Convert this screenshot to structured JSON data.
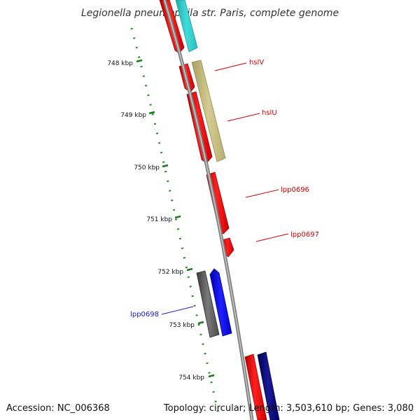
{
  "title": "Legionella pneumophila str. Paris, complete genome",
  "footer": {
    "accession": "Accession: NC_006368",
    "summary": "Topology: circular; Length: 3,503,610 bp; Genes: 3,080"
  },
  "ruler": {
    "ticks": [
      {
        "label": "748 kbp",
        "value": 748
      },
      {
        "label": "749 kbp",
        "value": 749
      },
      {
        "label": "750 kbp",
        "value": 750
      },
      {
        "label": "751 kbp",
        "value": 751
      },
      {
        "label": "752 kbp",
        "value": 752
      },
      {
        "label": "753 kbp",
        "value": 753
      },
      {
        "label": "754 kbp",
        "value": 754
      }
    ]
  },
  "gene_labels": [
    {
      "label": "hslV",
      "color": "#d40000"
    },
    {
      "label": "hslU",
      "color": "#d40000"
    },
    {
      "label": "lpp0696",
      "color": "#d40000"
    },
    {
      "label": "lpp0697",
      "color": "#d40000"
    },
    {
      "label": "lpp0698",
      "color": "#1a1acc"
    }
  ],
  "colors": {
    "backbone": "#8c8c8c",
    "ruler": "#2a8a2a",
    "red_feature": "#ff0000",
    "cyan_feature": "#33cccc",
    "olive_feature": "#c8bf80",
    "blue_feature": "#0000ee",
    "gray_feature": "#5a5a5a",
    "navy_feature": "#0a0a7a"
  }
}
